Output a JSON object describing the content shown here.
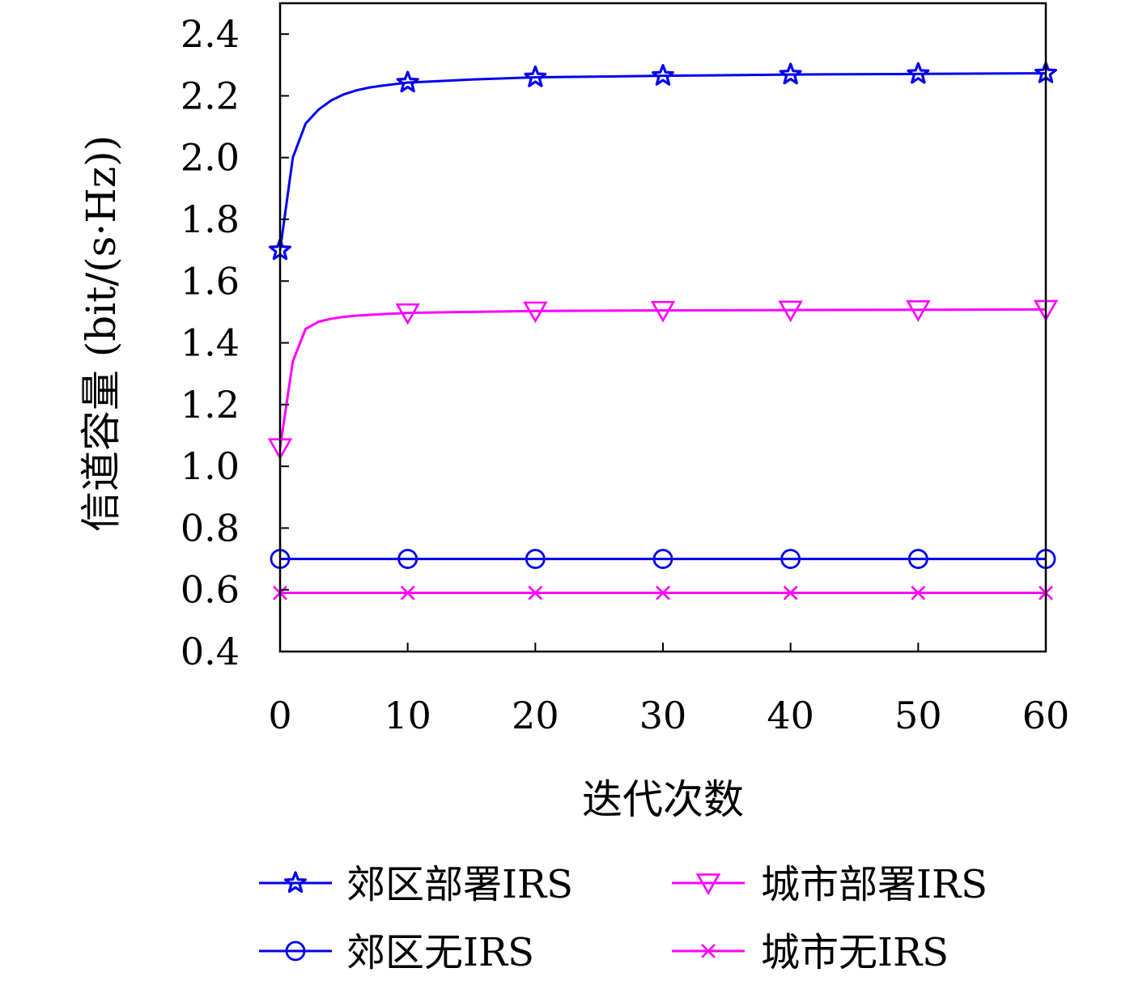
{
  "chart_data": {
    "type": "line",
    "title": "",
    "xlabel": "迭代次数",
    "ylabel": "信道容量 (bit/(s·Hz))",
    "xlim": [
      0,
      60
    ],
    "ylim": [
      0.4,
      2.5
    ],
    "xticks": [
      0,
      10,
      20,
      30,
      40,
      50,
      60
    ],
    "xtick_labels": [
      "0",
      "10",
      "20",
      "30",
      "40",
      "50",
      "60"
    ],
    "yticks": [
      0.4,
      0.6,
      0.8,
      1.0,
      1.2,
      1.4,
      1.6,
      1.8,
      2.0,
      2.2,
      2.4
    ],
    "ytick_labels": [
      "0.4",
      "0.6",
      "0.8",
      "1.0",
      "1.2",
      "1.4",
      "1.6",
      "1.8",
      "2.0",
      "2.2",
      "2.4"
    ],
    "grid": false,
    "legend_position": "bottom",
    "series": [
      {
        "name": "郊区部署IRS",
        "color": "#0000ee",
        "marker": "star",
        "x": [
          0,
          1,
          2,
          3,
          4,
          5,
          6,
          7,
          8,
          9,
          10,
          15,
          20,
          30,
          40,
          50,
          60
        ],
        "y": [
          1.7,
          2.0,
          2.11,
          2.155,
          2.185,
          2.205,
          2.218,
          2.227,
          2.233,
          2.238,
          2.243,
          2.253,
          2.26,
          2.265,
          2.269,
          2.271,
          2.273
        ],
        "marker_x": [
          0,
          10,
          20,
          30,
          40,
          50,
          60
        ]
      },
      {
        "name": "城市部署IRS",
        "color": "#ff00ff",
        "marker": "triangle-down",
        "x": [
          0,
          1,
          2,
          3,
          4,
          5,
          6,
          8,
          10,
          15,
          20,
          30,
          40,
          50,
          60
        ],
        "y": [
          1.06,
          1.34,
          1.445,
          1.468,
          1.478,
          1.484,
          1.488,
          1.493,
          1.497,
          1.5,
          1.503,
          1.505,
          1.506,
          1.507,
          1.508
        ],
        "marker_x": [
          0,
          10,
          20,
          30,
          40,
          50,
          60
        ]
      },
      {
        "name": "郊区无IRS",
        "color": "#0000ee",
        "marker": "circle",
        "x": [
          0,
          10,
          20,
          30,
          40,
          50,
          60
        ],
        "y": [
          0.7,
          0.7,
          0.7,
          0.7,
          0.7,
          0.7,
          0.7
        ],
        "marker_x": [
          0,
          10,
          20,
          30,
          40,
          50,
          60
        ]
      },
      {
        "name": "城市无IRS",
        "color": "#ff00ff",
        "marker": "x",
        "x": [
          0,
          10,
          20,
          30,
          40,
          50,
          60
        ],
        "y": [
          0.59,
          0.59,
          0.59,
          0.59,
          0.59,
          0.59,
          0.59
        ],
        "marker_x": [
          0,
          10,
          20,
          30,
          40,
          50,
          60
        ]
      }
    ]
  }
}
